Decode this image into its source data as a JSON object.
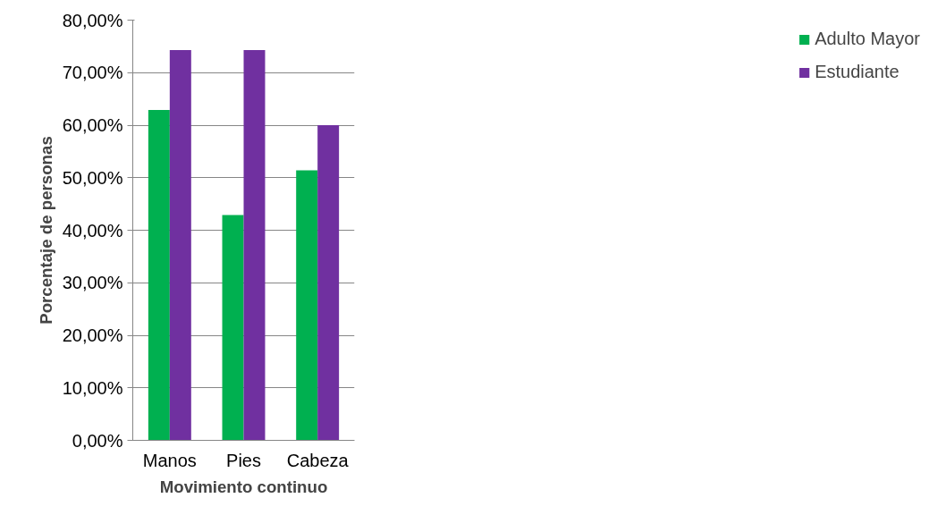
{
  "chart_data": {
    "type": "bar",
    "xlabel": "Movimiento continuo",
    "ylabel": "Porcentaje de personas",
    "categories": [
      "Manos",
      "Pies",
      "Cabeza"
    ],
    "series": [
      {
        "name": "Adulto Mayor",
        "color": "#00b050",
        "values": [
          62.9,
          42.9,
          51.4
        ]
      },
      {
        "name": "Estudiante",
        "color": "#7030a0",
        "values": [
          74.3,
          74.3,
          60.0
        ]
      }
    ],
    "ylim": [
      0,
      80
    ],
    "yticks": [
      {
        "value": 0,
        "label": "0,00%"
      },
      {
        "value": 10,
        "label": "10,00%"
      },
      {
        "value": 20,
        "label": "20,00%"
      },
      {
        "value": 30,
        "label": "30,00%"
      },
      {
        "value": 40,
        "label": "40,00%"
      },
      {
        "value": 50,
        "label": "50,00%"
      },
      {
        "value": 60,
        "label": "60,00%"
      },
      {
        "value": 70,
        "label": "70,00%"
      },
      {
        "value": 80,
        "label": "80,00%"
      }
    ],
    "grid": "y",
    "legend": "right"
  }
}
